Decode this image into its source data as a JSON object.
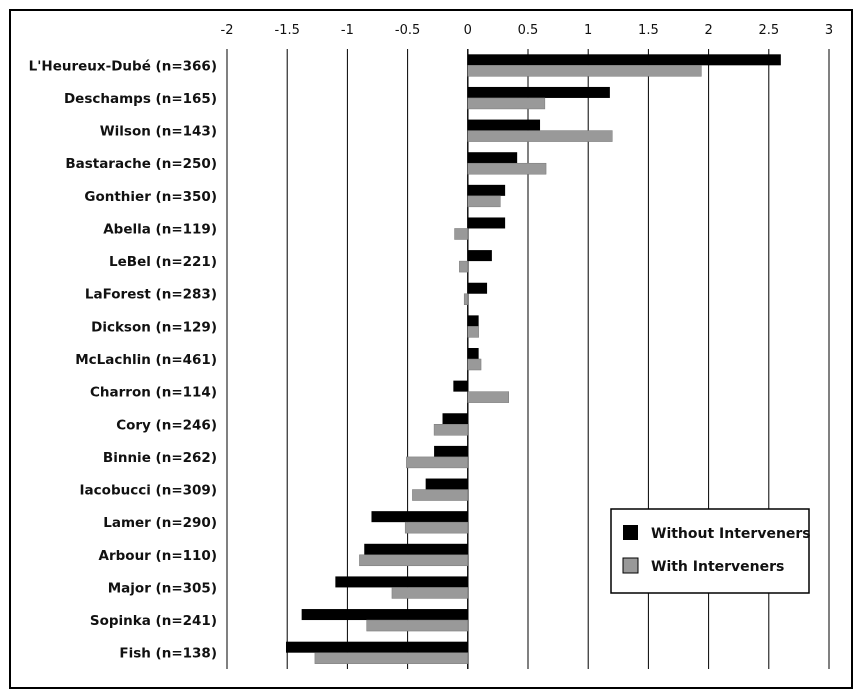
{
  "chart_data": {
    "type": "bar",
    "orientation": "horizontal",
    "title": "",
    "xlabel": "",
    "ylabel": "",
    "xlim": [
      -2,
      3
    ],
    "x_ticks": [
      "-2",
      "-1.5",
      "-1",
      "-0.5",
      "0",
      "0.5",
      "1",
      "1.5",
      "2",
      "2.5",
      "3"
    ],
    "x_tick_values": [
      -2,
      -1.5,
      -1,
      -0.5,
      0,
      0.5,
      1,
      1.5,
      2,
      2.5,
      3
    ],
    "x_axis_position": "top",
    "grid": "vertical",
    "legend_position": "bottom-right",
    "categories": [
      "L'Heureux-Dubé (n=366)",
      "Deschamps (n=165)",
      "Wilson (n=143)",
      "Bastarache (n=250)",
      "Gonthier (n=350)",
      "Abella (n=119)",
      "LeBel (n=221)",
      "LaForest (n=283)",
      "Dickson (n=129)",
      "McLachlin (n=461)",
      "Charron (n=114)",
      "Cory (n=246)",
      "Binnie (n=262)",
      "Iacobucci (n=309)",
      "Lamer (n=290)",
      "Arbour (n=110)",
      "Major (n=305)",
      "Sopinka (n=241)",
      "Fish (n=138)"
    ],
    "series": [
      {
        "name": "Without Interveners",
        "color": "#000000",
        "values": [
          2.6,
          1.18,
          0.6,
          0.41,
          0.31,
          0.31,
          0.2,
          0.16,
          0.09,
          0.09,
          -0.12,
          -0.21,
          -0.28,
          -0.35,
          -0.8,
          -0.86,
          -1.1,
          -1.38,
          -1.51
        ]
      },
      {
        "name": "With Interveners",
        "color": "#999999",
        "values": [
          1.94,
          0.64,
          1.2,
          0.65,
          0.27,
          -0.11,
          -0.07,
          -0.03,
          0.09,
          0.11,
          0.34,
          -0.28,
          -0.51,
          -0.46,
          -0.52,
          -0.9,
          -0.63,
          -0.84,
          -1.27
        ]
      }
    ]
  }
}
